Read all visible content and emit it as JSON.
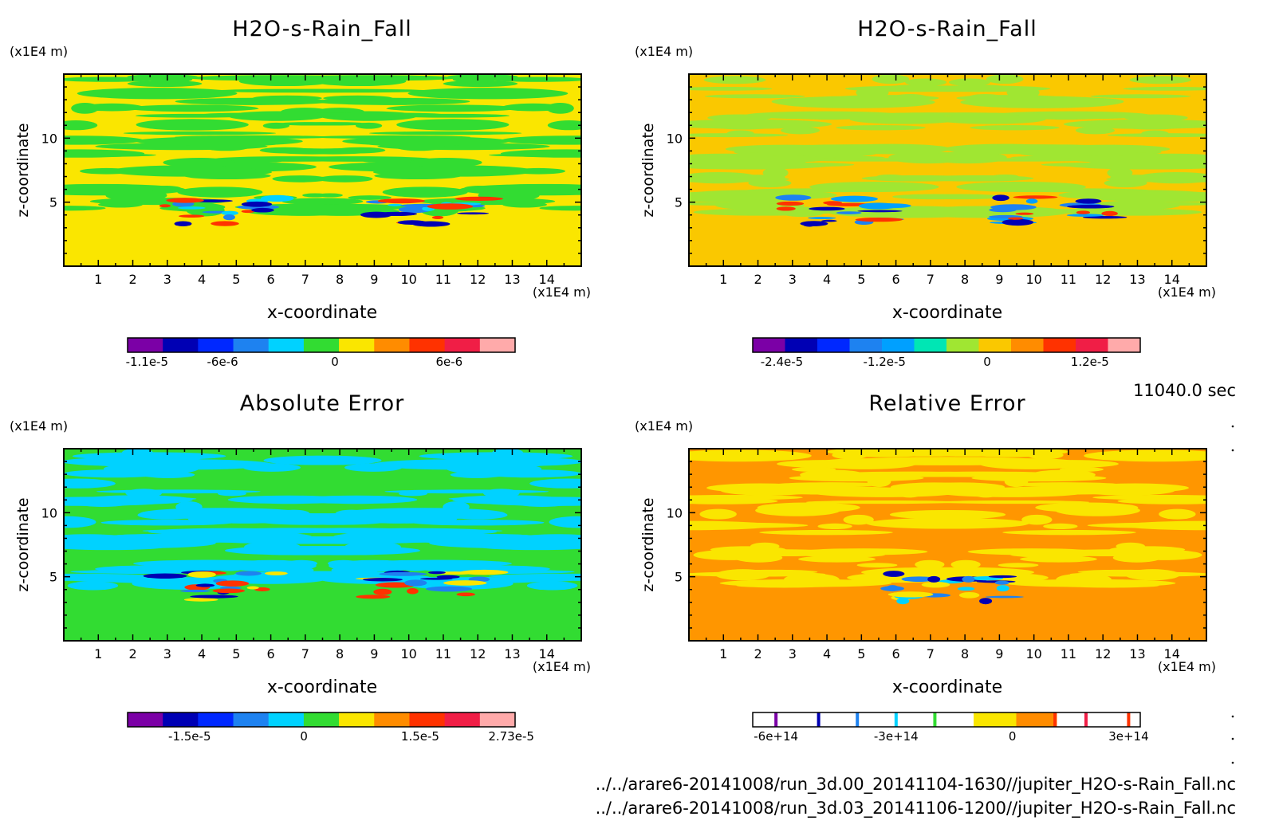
{
  "chart_data": [
    {
      "type": "heatmap",
      "title": "H2O-s-Rain_Fall",
      "xlabel": "x-coordinate",
      "ylabel": "z-coordinate",
      "x_unit": "(x1E4 m)",
      "y_unit": "(x1E4 m)",
      "x_ticks": [
        "1",
        "2",
        "3",
        "4",
        "5",
        "6",
        "7",
        "8",
        "9",
        "10",
        "11",
        "12",
        "13",
        "14"
      ],
      "y_ticks": [
        "5",
        "10"
      ],
      "xlim": [
        0,
        15
      ],
      "ylim": [
        0,
        15
      ],
      "colorbar": {
        "colors": [
          "#7b00a6",
          "#0000b4",
          "#0028ff",
          "#1e82f0",
          "#00d2ff",
          "#32dc32",
          "#fae600",
          "#ff8c00",
          "#ff3200",
          "#f01e46",
          "#ffaaaa"
        ],
        "tick_labels": [
          [
            "-1.1e-5",
            0.05
          ],
          [
            "-6e-6",
            0.245
          ],
          [
            "0",
            0.535
          ],
          [
            "6e-6",
            0.83
          ]
        ]
      },
      "background": "#fae600",
      "secondary": "#32dc32",
      "features": [
        "#ff3200",
        "#0000b4",
        "#1e82f0",
        "#00d2ff"
      ]
    },
    {
      "type": "heatmap",
      "title": "H2O-s-Rain_Fall",
      "xlabel": "x-coordinate",
      "ylabel": "z-coordinate",
      "x_unit": "(x1E4 m)",
      "y_unit": "(x1E4 m)",
      "x_ticks": [
        "1",
        "2",
        "3",
        "4",
        "5",
        "6",
        "7",
        "8",
        "9",
        "10",
        "11",
        "12",
        "13",
        "14"
      ],
      "y_ticks": [
        "5",
        "10"
      ],
      "xlim": [
        0,
        15
      ],
      "ylim": [
        0,
        15
      ],
      "colorbar": {
        "colors": [
          "#7b00a6",
          "#0000b4",
          "#0028ff",
          "#1e82f0",
          "#00a0ff",
          "#00e6b4",
          "#a0e632",
          "#fac800",
          "#ff8c00",
          "#ff3200",
          "#f01e46",
          "#ffaaaa"
        ],
        "tick_labels": [
          [
            "-2.4e-5",
            0.075
          ],
          [
            "-1.2e-5",
            0.34
          ],
          [
            "0",
            0.605
          ],
          [
            "1.2e-5",
            0.87
          ]
        ]
      },
      "background": "#fac800",
      "secondary": "#a0e632",
      "features": [
        "#ff3200",
        "#0000b4",
        "#1e82f0",
        "#00a0ff"
      ]
    },
    {
      "type": "heatmap",
      "title": "Absolute Error",
      "xlabel": "x-coordinate",
      "ylabel": "z-coordinate",
      "x_unit": "(x1E4 m)",
      "y_unit": "(x1E4 m)",
      "x_ticks": [
        "1",
        "2",
        "3",
        "4",
        "5",
        "6",
        "7",
        "8",
        "9",
        "10",
        "11",
        "12",
        "13",
        "14"
      ],
      "y_ticks": [
        "5",
        "10"
      ],
      "xlim": [
        0,
        15
      ],
      "ylim": [
        0,
        15
      ],
      "colorbar": {
        "colors": [
          "#7b00a6",
          "#0000b4",
          "#0028ff",
          "#1e82f0",
          "#00d2ff",
          "#32dc32",
          "#fae600",
          "#ff8c00",
          "#ff3200",
          "#f01e46",
          "#ffaaaa"
        ],
        "tick_labels": [
          [
            "-1.5e-5",
            0.16
          ],
          [
            "0",
            0.455
          ],
          [
            "1.5e-5",
            0.755
          ],
          [
            "2.73e-5",
            0.99
          ]
        ]
      },
      "background": "#32dc32",
      "secondary": "#00d2ff",
      "features": [
        "#0000b4",
        "#ff3200",
        "#1e82f0",
        "#fae600"
      ]
    },
    {
      "type": "heatmap",
      "title": "Relative Error",
      "xlabel": "x-coordinate",
      "ylabel": "z-coordinate",
      "x_unit": "(x1E4 m)",
      "y_unit": "(x1E4 m)",
      "x_ticks": [
        "1",
        "2",
        "3",
        "4",
        "5",
        "6",
        "7",
        "8",
        "9",
        "10",
        "11",
        "12",
        "13",
        "14"
      ],
      "y_ticks": [
        "5",
        "10"
      ],
      "xlim": [
        0,
        15
      ],
      "ylim": [
        0,
        15
      ],
      "colorbar": {
        "style": "lines",
        "colors": [
          "#ffffff",
          "#7b00a6",
          "#ffffff",
          "#0000b4",
          "#ffffff",
          "#1e82f0",
          "#ffffff",
          "#00d2ff",
          "#ffffff",
          "#32dc32",
          "#ffffff",
          "#fae600",
          "#ff8c00",
          "#ffffff",
          "#ff3200",
          "#ffffff",
          "#f01e46",
          "#ffffff"
        ],
        "tick_labels": [
          [
            "-6e+14",
            0.06
          ],
          [
            "-3e+14",
            0.37
          ],
          [
            "0",
            0.67
          ],
          [
            "3e+14",
            0.97
          ]
        ]
      },
      "background": "#ff9600",
      "secondary": "#fae600",
      "features": [
        "#0000b4",
        "#1e82f0",
        "#00d2ff",
        "#fae600"
      ]
    }
  ],
  "time_label": "11040.0 sec",
  "file_paths": [
    "../../arare6-20141008/run_3d.00_20141104-1630//jupiter_H2O-s-Rain_Fall.nc",
    "../../arare6-20141008/run_3d.03_20141106-1200//jupiter_H2O-s-Rain_Fall.nc"
  ]
}
